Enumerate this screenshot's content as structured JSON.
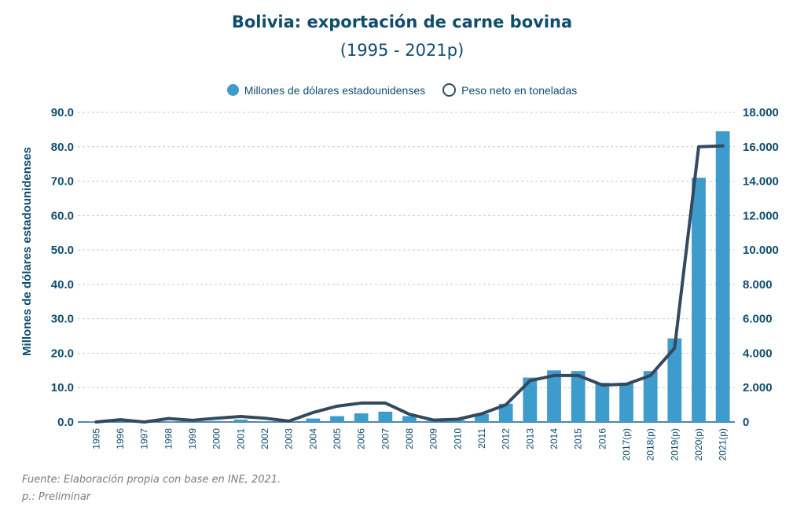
{
  "chart_data": {
    "type": "bar",
    "title": "Bolivia: exportación de carne bovina",
    "subtitle": "(1995 - 2021p)",
    "xlabel": "",
    "ylabel": "Millones de dólares estadounidenses",
    "ylabel_right": "",
    "ylim": [
      0,
      90
    ],
    "ylim_right": [
      0,
      18000
    ],
    "yticks": [
      "0.0",
      "10.0",
      "20.0",
      "30.0",
      "40.0",
      "50.0",
      "60.0",
      "70.0",
      "80.0",
      "90.0"
    ],
    "yticks_right": [
      "0",
      "2.000",
      "4.000",
      "6.000",
      "8.000",
      "10.000",
      "12.000",
      "14.000",
      "16.000",
      "18.000"
    ],
    "grid": true,
    "legend_position": "top-center",
    "categories": [
      "1995",
      "1996",
      "1997",
      "1998",
      "1999",
      "2000",
      "2001",
      "2002",
      "2003",
      "2004",
      "2005",
      "2006",
      "2007",
      "2008",
      "2009",
      "2010",
      "2011",
      "2012",
      "2013",
      "2014",
      "2015",
      "2016",
      "2017(p)",
      "2018(p)",
      "2019(p)",
      "2020(p)",
      "2021(p)"
    ],
    "series": [
      {
        "name": "Millones de dólares estadounidenses",
        "type": "bar",
        "axis": "left",
        "color": "#3d9ccb",
        "values": [
          0.1,
          0.1,
          0.0,
          0.1,
          0.1,
          0.3,
          0.7,
          0.2,
          0.1,
          1.0,
          1.7,
          2.5,
          3.0,
          1.7,
          0.4,
          0.6,
          2.3,
          5.3,
          12.9,
          15.0,
          14.8,
          11.4,
          11.4,
          14.8,
          24.3,
          71.0,
          84.5
        ]
      },
      {
        "name": "Peso neto en toneladas",
        "type": "line",
        "axis": "right",
        "color": "#34495e",
        "values": [
          0,
          130,
          0,
          200,
          100,
          220,
          320,
          220,
          50,
          550,
          920,
          1100,
          1100,
          450,
          110,
          160,
          480,
          1000,
          2400,
          2700,
          2700,
          2150,
          2200,
          2700,
          4300,
          16000,
          16050
        ]
      }
    ]
  },
  "footnotes": {
    "source": "Fuente: Elaboración propia con base en INE, 2021.",
    "note": "p.: Preliminar"
  }
}
